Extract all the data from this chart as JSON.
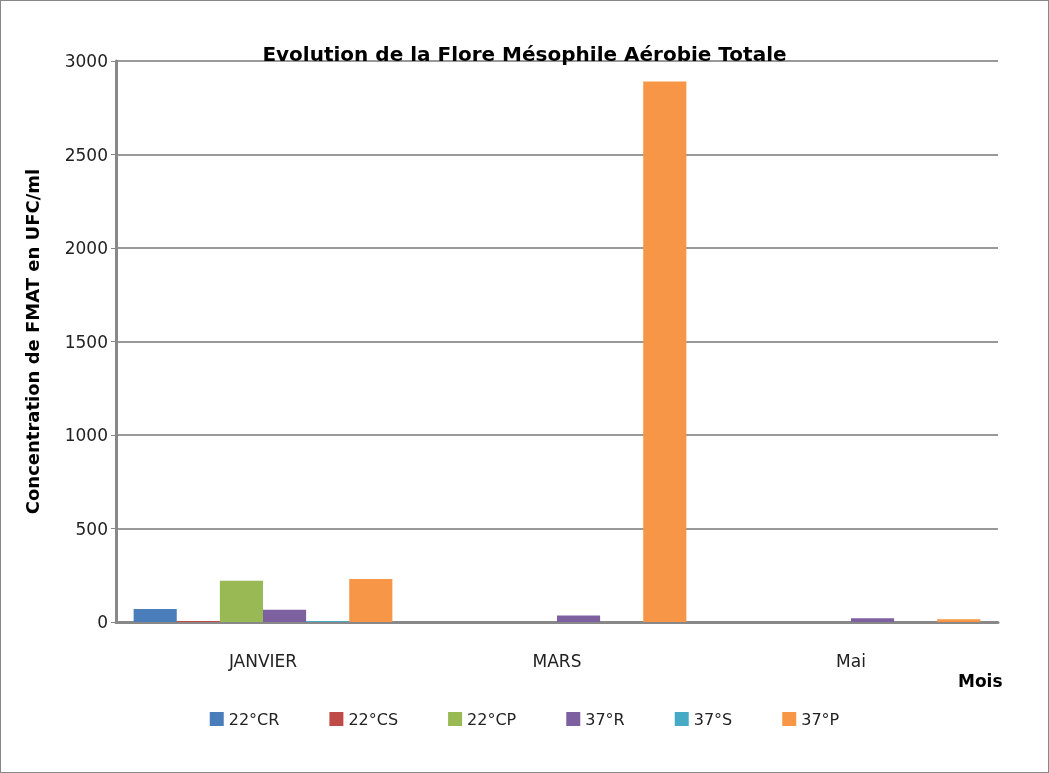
{
  "chart_data": {
    "type": "bar",
    "title": "Evolution de la Flore Mésophile Aérobie Totale",
    "xlabel": "Mois",
    "ylabel": "Concentration de FMAT en UFC/ml",
    "categories": [
      "JANVIER",
      "MARS",
      "Mai"
    ],
    "series": [
      {
        "name": "22°CR",
        "color": "#4a7ebb",
        "values": [
          70,
          0,
          0
        ]
      },
      {
        "name": "22°CS",
        "color": "#be4b48",
        "values": [
          5,
          0,
          0
        ]
      },
      {
        "name": "22°CP",
        "color": "#98b954",
        "values": [
          220,
          0,
          0
        ]
      },
      {
        "name": "37°R",
        "color": "#7d60a0",
        "values": [
          65,
          35,
          20
        ]
      },
      {
        "name": "37°S",
        "color": "#46aac5",
        "values": [
          5,
          0,
          0
        ]
      },
      {
        "name": "37°P",
        "color": "#f79646",
        "values": [
          230,
          2890,
          15
        ]
      }
    ],
    "ylim": [
      0,
      3000
    ],
    "yticks": [
      0,
      500,
      1000,
      1500,
      2000,
      2500,
      3000
    ],
    "grid": "y",
    "legend": "bottom"
  }
}
